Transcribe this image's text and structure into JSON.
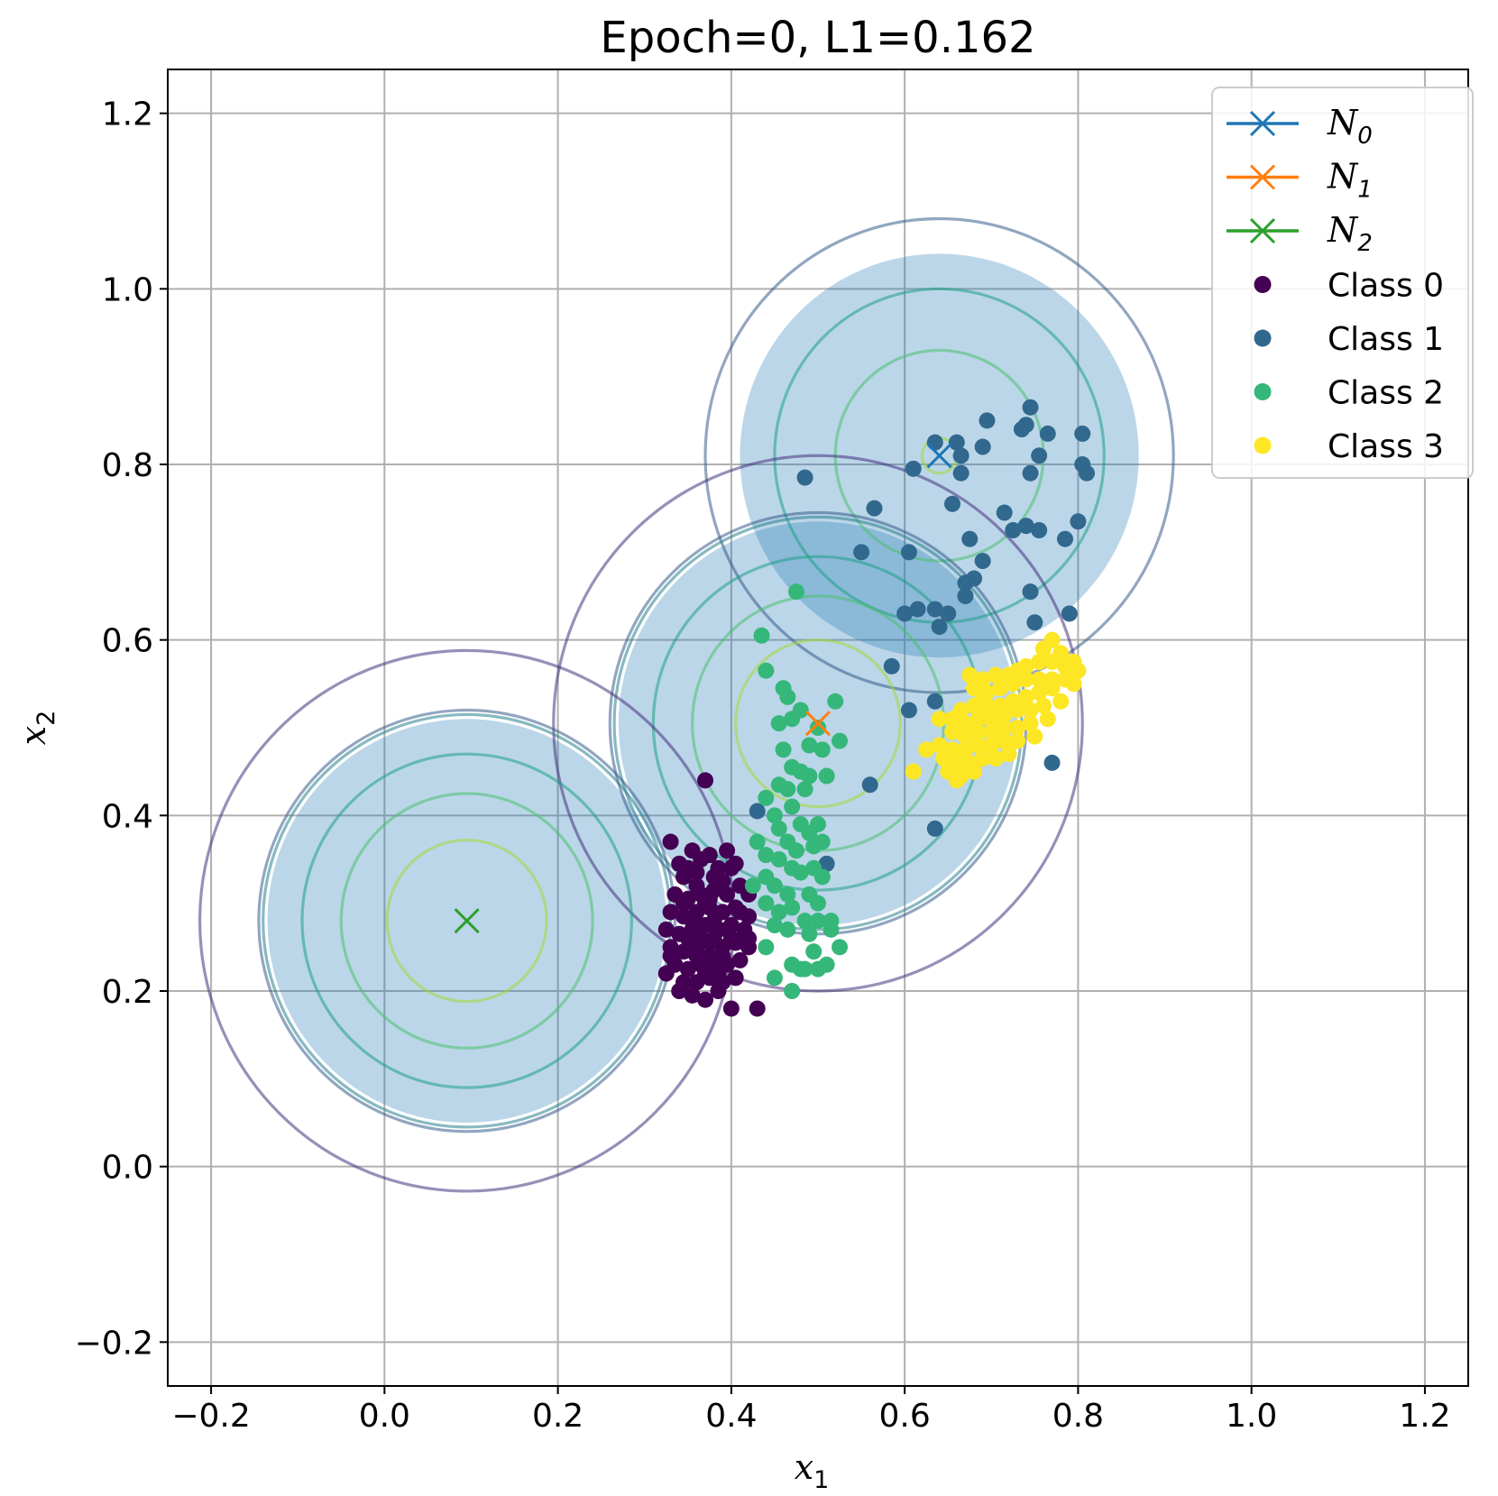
{
  "chart_data": {
    "type": "scatter",
    "title": "Epoch=0, L1=0.162",
    "xlabel": "x",
    "xlabel_sub": "1",
    "ylabel": "x",
    "ylabel_sub": "2",
    "xlim": [
      -0.25,
      1.25
    ],
    "ylim": [
      -0.25,
      1.25
    ],
    "xticks": [
      -0.2,
      0.0,
      0.2,
      0.4,
      0.6,
      0.8,
      1.0,
      1.2
    ],
    "xtick_labels": [
      "−0.2",
      "0.0",
      "0.2",
      "0.4",
      "0.6",
      "0.8",
      "1.0",
      "1.2"
    ],
    "yticks": [
      -0.2,
      0.0,
      0.2,
      0.4,
      0.6,
      0.8,
      1.0,
      1.2
    ],
    "ytick_labels": [
      "−0.2",
      "0.0",
      "0.2",
      "0.4",
      "0.6",
      "0.8",
      "1.0",
      "1.2"
    ],
    "grid": true,
    "legend_position": "top-right",
    "gaussians": [
      {
        "name": "N",
        "sub": "0",
        "center": [
          0.64,
          0.81
        ],
        "color": "#1f77b4",
        "shade_radius": 0.23
      },
      {
        "name": "N",
        "sub": "1",
        "center": [
          0.5,
          0.505
        ],
        "color": "#ff7f0e",
        "shade_radius": 0.23
      },
      {
        "name": "N",
        "sub": "2",
        "center": [
          0.095,
          0.28
        ],
        "color": "#2ca02c",
        "shade_radius": 0.23
      }
    ],
    "contours": [
      {
        "center": [
          0.64,
          0.81
        ],
        "radii": [
          0.02,
          0.12,
          0.19,
          0.27
        ],
        "colors": [
          "#a0da39",
          "#4ac16d",
          "#1fa187",
          "#365c8d"
        ]
      },
      {
        "center": [
          0.5,
          0.505
        ],
        "radii": [
          0.095,
          0.145,
          0.19,
          0.235,
          0.24,
          0.305
        ],
        "colors": [
          "#a0da39",
          "#4ac16d",
          "#1fa187",
          "#277f8e",
          "#365c8d",
          "#46327e"
        ]
      },
      {
        "center": [
          0.095,
          0.28
        ],
        "radii": [
          0.092,
          0.145,
          0.19,
          0.235,
          0.24,
          0.308
        ],
        "colors": [
          "#a0da39",
          "#4ac16d",
          "#1fa187",
          "#277f8e",
          "#365c8d",
          "#46327e"
        ]
      }
    ],
    "series": [
      {
        "name": "Class 0",
        "color": "#440154",
        "points": [
          [
            0.37,
            0.44
          ],
          [
            0.33,
            0.37
          ],
          [
            0.355,
            0.36
          ],
          [
            0.345,
            0.33
          ],
          [
            0.385,
            0.34
          ],
          [
            0.395,
            0.36
          ],
          [
            0.405,
            0.345
          ],
          [
            0.365,
            0.35
          ],
          [
            0.34,
            0.345
          ],
          [
            0.375,
            0.355
          ],
          [
            0.335,
            0.31
          ],
          [
            0.35,
            0.305
          ],
          [
            0.365,
            0.31
          ],
          [
            0.38,
            0.315
          ],
          [
            0.395,
            0.31
          ],
          [
            0.41,
            0.32
          ],
          [
            0.42,
            0.31
          ],
          [
            0.33,
            0.29
          ],
          [
            0.345,
            0.285
          ],
          [
            0.36,
            0.29
          ],
          [
            0.375,
            0.295
          ],
          [
            0.39,
            0.29
          ],
          [
            0.405,
            0.295
          ],
          [
            0.42,
            0.285
          ],
          [
            0.325,
            0.27
          ],
          [
            0.34,
            0.265
          ],
          [
            0.355,
            0.27
          ],
          [
            0.37,
            0.275
          ],
          [
            0.385,
            0.27
          ],
          [
            0.4,
            0.275
          ],
          [
            0.415,
            0.27
          ],
          [
            0.33,
            0.25
          ],
          [
            0.345,
            0.245
          ],
          [
            0.36,
            0.25
          ],
          [
            0.375,
            0.255
          ],
          [
            0.39,
            0.25
          ],
          [
            0.405,
            0.255
          ],
          [
            0.42,
            0.25
          ],
          [
            0.335,
            0.23
          ],
          [
            0.35,
            0.225
          ],
          [
            0.365,
            0.23
          ],
          [
            0.38,
            0.235
          ],
          [
            0.395,
            0.23
          ],
          [
            0.41,
            0.235
          ],
          [
            0.325,
            0.22
          ],
          [
            0.345,
            0.21
          ],
          [
            0.36,
            0.21
          ],
          [
            0.375,
            0.215
          ],
          [
            0.39,
            0.21
          ],
          [
            0.405,
            0.215
          ],
          [
            0.34,
            0.2
          ],
          [
            0.355,
            0.195
          ],
          [
            0.37,
            0.19
          ],
          [
            0.385,
            0.2
          ],
          [
            0.4,
            0.18
          ],
          [
            0.43,
            0.18
          ],
          [
            0.36,
            0.32
          ],
          [
            0.37,
            0.3
          ],
          [
            0.38,
            0.28
          ],
          [
            0.35,
            0.26
          ],
          [
            0.36,
            0.24
          ],
          [
            0.37,
            0.22
          ],
          [
            0.38,
            0.26
          ],
          [
            0.39,
            0.24
          ],
          [
            0.4,
            0.26
          ],
          [
            0.355,
            0.28
          ],
          [
            0.365,
            0.26
          ],
          [
            0.375,
            0.24
          ],
          [
            0.385,
            0.22
          ],
          [
            0.395,
            0.27
          ],
          [
            0.41,
            0.29
          ],
          [
            0.35,
            0.34
          ],
          [
            0.38,
            0.33
          ],
          [
            0.4,
            0.34
          ],
          [
            0.33,
            0.24
          ],
          [
            0.345,
            0.3
          ],
          [
            0.375,
            0.305
          ],
          [
            0.36,
            0.335
          ],
          [
            0.39,
            0.325
          ],
          [
            0.42,
            0.26
          ]
        ]
      },
      {
        "name": "Class 1",
        "color": "#31688e",
        "points": [
          [
            0.635,
            0.825
          ],
          [
            0.66,
            0.825
          ],
          [
            0.665,
            0.81
          ],
          [
            0.665,
            0.79
          ],
          [
            0.69,
            0.82
          ],
          [
            0.695,
            0.85
          ],
          [
            0.74,
            0.845
          ],
          [
            0.735,
            0.84
          ],
          [
            0.745,
            0.865
          ],
          [
            0.765,
            0.835
          ],
          [
            0.805,
            0.835
          ],
          [
            0.805,
            0.8
          ],
          [
            0.81,
            0.79
          ],
          [
            0.745,
            0.79
          ],
          [
            0.755,
            0.81
          ],
          [
            0.61,
            0.795
          ],
          [
            0.485,
            0.785
          ],
          [
            0.565,
            0.75
          ],
          [
            0.655,
            0.755
          ],
          [
            0.715,
            0.745
          ],
          [
            0.725,
            0.725
          ],
          [
            0.74,
            0.73
          ],
          [
            0.755,
            0.725
          ],
          [
            0.8,
            0.735
          ],
          [
            0.785,
            0.715
          ],
          [
            0.675,
            0.715
          ],
          [
            0.605,
            0.7
          ],
          [
            0.55,
            0.7
          ],
          [
            0.69,
            0.69
          ],
          [
            0.67,
            0.665
          ],
          [
            0.68,
            0.67
          ],
          [
            0.67,
            0.65
          ],
          [
            0.745,
            0.655
          ],
          [
            0.6,
            0.63
          ],
          [
            0.615,
            0.635
          ],
          [
            0.635,
            0.635
          ],
          [
            0.65,
            0.63
          ],
          [
            0.64,
            0.615
          ],
          [
            0.75,
            0.62
          ],
          [
            0.79,
            0.63
          ],
          [
            0.585,
            0.57
          ],
          [
            0.605,
            0.52
          ],
          [
            0.635,
            0.53
          ],
          [
            0.56,
            0.435
          ],
          [
            0.77,
            0.46
          ],
          [
            0.43,
            0.405
          ],
          [
            0.635,
            0.385
          ],
          [
            0.51,
            0.345
          ]
        ]
      },
      {
        "name": "Class 2",
        "color": "#35b779",
        "points": [
          [
            0.475,
            0.655
          ],
          [
            0.435,
            0.605
          ],
          [
            0.44,
            0.565
          ],
          [
            0.46,
            0.545
          ],
          [
            0.465,
            0.535
          ],
          [
            0.48,
            0.52
          ],
          [
            0.455,
            0.505
          ],
          [
            0.5,
            0.5
          ],
          [
            0.52,
            0.53
          ],
          [
            0.47,
            0.51
          ],
          [
            0.49,
            0.48
          ],
          [
            0.505,
            0.475
          ],
          [
            0.525,
            0.485
          ],
          [
            0.46,
            0.475
          ],
          [
            0.47,
            0.455
          ],
          [
            0.48,
            0.45
          ],
          [
            0.49,
            0.445
          ],
          [
            0.51,
            0.445
          ],
          [
            0.455,
            0.435
          ],
          [
            0.465,
            0.43
          ],
          [
            0.485,
            0.43
          ],
          [
            0.44,
            0.42
          ],
          [
            0.45,
            0.4
          ],
          [
            0.47,
            0.41
          ],
          [
            0.48,
            0.39
          ],
          [
            0.49,
            0.38
          ],
          [
            0.5,
            0.39
          ],
          [
            0.455,
            0.385
          ],
          [
            0.465,
            0.37
          ],
          [
            0.475,
            0.36
          ],
          [
            0.495,
            0.365
          ],
          [
            0.505,
            0.37
          ],
          [
            0.43,
            0.37
          ],
          [
            0.44,
            0.355
          ],
          [
            0.455,
            0.35
          ],
          [
            0.47,
            0.34
          ],
          [
            0.48,
            0.335
          ],
          [
            0.495,
            0.34
          ],
          [
            0.505,
            0.33
          ],
          [
            0.44,
            0.33
          ],
          [
            0.45,
            0.32
          ],
          [
            0.465,
            0.31
          ],
          [
            0.49,
            0.31
          ],
          [
            0.5,
            0.3
          ],
          [
            0.425,
            0.32
          ],
          [
            0.44,
            0.3
          ],
          [
            0.455,
            0.29
          ],
          [
            0.47,
            0.295
          ],
          [
            0.485,
            0.28
          ],
          [
            0.5,
            0.28
          ],
          [
            0.515,
            0.28
          ],
          [
            0.45,
            0.275
          ],
          [
            0.465,
            0.27
          ],
          [
            0.49,
            0.265
          ],
          [
            0.515,
            0.27
          ],
          [
            0.44,
            0.25
          ],
          [
            0.47,
            0.23
          ],
          [
            0.48,
            0.225
          ],
          [
            0.495,
            0.245
          ],
          [
            0.5,
            0.225
          ],
          [
            0.525,
            0.25
          ],
          [
            0.485,
            0.225
          ],
          [
            0.45,
            0.215
          ],
          [
            0.47,
            0.2
          ],
          [
            0.51,
            0.23
          ]
        ]
      },
      {
        "name": "Class 3",
        "color": "#fde725",
        "points": [
          [
            0.77,
            0.6
          ],
          [
            0.76,
            0.59
          ],
          [
            0.78,
            0.585
          ],
          [
            0.795,
            0.575
          ],
          [
            0.8,
            0.565
          ],
          [
            0.785,
            0.57
          ],
          [
            0.77,
            0.575
          ],
          [
            0.755,
            0.575
          ],
          [
            0.74,
            0.57
          ],
          [
            0.73,
            0.565
          ],
          [
            0.72,
            0.56
          ],
          [
            0.705,
            0.56
          ],
          [
            0.69,
            0.555
          ],
          [
            0.675,
            0.56
          ],
          [
            0.68,
            0.545
          ],
          [
            0.695,
            0.54
          ],
          [
            0.71,
            0.545
          ],
          [
            0.725,
            0.55
          ],
          [
            0.74,
            0.555
          ],
          [
            0.755,
            0.555
          ],
          [
            0.77,
            0.555
          ],
          [
            0.785,
            0.555
          ],
          [
            0.77,
            0.545
          ],
          [
            0.755,
            0.54
          ],
          [
            0.74,
            0.535
          ],
          [
            0.725,
            0.53
          ],
          [
            0.71,
            0.525
          ],
          [
            0.695,
            0.525
          ],
          [
            0.68,
            0.525
          ],
          [
            0.665,
            0.52
          ],
          [
            0.655,
            0.51
          ],
          [
            0.67,
            0.505
          ],
          [
            0.685,
            0.51
          ],
          [
            0.7,
            0.51
          ],
          [
            0.715,
            0.515
          ],
          [
            0.73,
            0.52
          ],
          [
            0.745,
            0.52
          ],
          [
            0.76,
            0.525
          ],
          [
            0.655,
            0.495
          ],
          [
            0.67,
            0.49
          ],
          [
            0.685,
            0.495
          ],
          [
            0.7,
            0.495
          ],
          [
            0.715,
            0.5
          ],
          [
            0.73,
            0.5
          ],
          [
            0.745,
            0.505
          ],
          [
            0.64,
            0.48
          ],
          [
            0.655,
            0.475
          ],
          [
            0.67,
            0.475
          ],
          [
            0.685,
            0.48
          ],
          [
            0.7,
            0.48
          ],
          [
            0.715,
            0.485
          ],
          [
            0.73,
            0.485
          ],
          [
            0.645,
            0.465
          ],
          [
            0.66,
            0.46
          ],
          [
            0.675,
            0.46
          ],
          [
            0.69,
            0.465
          ],
          [
            0.705,
            0.465
          ],
          [
            0.65,
            0.45
          ],
          [
            0.665,
            0.445
          ],
          [
            0.68,
            0.45
          ],
          [
            0.625,
            0.475
          ],
          [
            0.61,
            0.45
          ],
          [
            0.66,
            0.44
          ],
          [
            0.72,
            0.47
          ],
          [
            0.75,
            0.49
          ],
          [
            0.765,
            0.51
          ],
          [
            0.78,
            0.53
          ],
          [
            0.795,
            0.55
          ],
          [
            0.64,
            0.51
          ],
          [
            0.69,
            0.535
          ]
        ]
      }
    ]
  }
}
